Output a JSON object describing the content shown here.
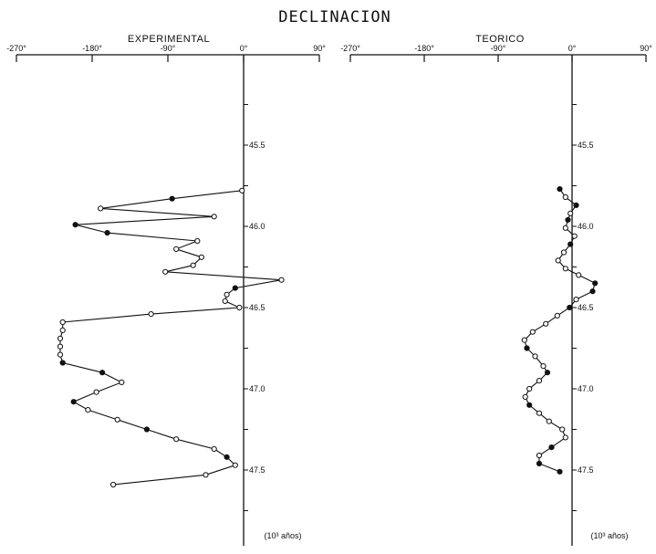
{
  "figure": {
    "title": "DECLINACION",
    "x_unit_label": "(10³ años)"
  },
  "chart_data": [
    {
      "type": "line",
      "title": "EXPERIMENTAL",
      "xlabel": "",
      "ylabel": "",
      "xlim": [
        -270,
        90
      ],
      "ylim": [
        45.0,
        48.0
      ],
      "x_ticks": [
        "-270°",
        "-180°",
        "-90°",
        "0°",
        "90°"
      ],
      "y_ticks": [
        "45.5",
        "46.0",
        "46.5",
        "47.0",
        "47.5"
      ],
      "y_unit": "(10³ años)",
      "y_inverted": true,
      "grid": false,
      "points": [
        {
          "x": -2,
          "y": 45.78,
          "filled": false
        },
        {
          "x": -85,
          "y": 45.83,
          "filled": true
        },
        {
          "x": -170,
          "y": 45.89,
          "filled": false
        },
        {
          "x": -35,
          "y": 45.94,
          "filled": false
        },
        {
          "x": -200,
          "y": 45.99,
          "filled": true
        },
        {
          "x": -162,
          "y": 46.04,
          "filled": true
        },
        {
          "x": -55,
          "y": 46.09,
          "filled": false
        },
        {
          "x": -80,
          "y": 46.14,
          "filled": false
        },
        {
          "x": -50,
          "y": 46.19,
          "filled": false
        },
        {
          "x": -60,
          "y": 46.24,
          "filled": false
        },
        {
          "x": -93,
          "y": 46.28,
          "filled": false
        },
        {
          "x": 45,
          "y": 46.33,
          "filled": false
        },
        {
          "x": -10,
          "y": 46.38,
          "filled": true
        },
        {
          "x": -20,
          "y": 46.42,
          "filled": false
        },
        {
          "x": -22,
          "y": 46.46,
          "filled": false
        },
        {
          "x": -5,
          "y": 46.5,
          "filled": false
        },
        {
          "x": -110,
          "y": 46.54,
          "filled": false
        },
        {
          "x": -215,
          "y": 46.59,
          "filled": false
        },
        {
          "x": -215,
          "y": 46.64,
          "filled": false
        },
        {
          "x": -218,
          "y": 46.69,
          "filled": false
        },
        {
          "x": -218,
          "y": 46.74,
          "filled": false
        },
        {
          "x": -218,
          "y": 46.79,
          "filled": false
        },
        {
          "x": -215,
          "y": 46.84,
          "filled": true
        },
        {
          "x": -168,
          "y": 46.9,
          "filled": true
        },
        {
          "x": -145,
          "y": 46.96,
          "filled": false
        },
        {
          "x": -175,
          "y": 47.02,
          "filled": false
        },
        {
          "x": -202,
          "y": 47.08,
          "filled": true
        },
        {
          "x": -185,
          "y": 47.13,
          "filled": false
        },
        {
          "x": -150,
          "y": 47.19,
          "filled": false
        },
        {
          "x": -115,
          "y": 47.25,
          "filled": true
        },
        {
          "x": -80,
          "y": 47.31,
          "filled": false
        },
        {
          "x": -35,
          "y": 47.37,
          "filled": false
        },
        {
          "x": -20,
          "y": 47.42,
          "filled": true
        },
        {
          "x": -10,
          "y": 47.47,
          "filled": false
        },
        {
          "x": -45,
          "y": 47.53,
          "filled": false
        },
        {
          "x": -155,
          "y": 47.59,
          "filled": false
        }
      ]
    },
    {
      "type": "line",
      "title": "TEORICO",
      "xlabel": "",
      "ylabel": "",
      "xlim": [
        -270,
        90
      ],
      "ylim": [
        45.0,
        48.0
      ],
      "x_ticks": [
        "-270°",
        "-180°",
        "-90°",
        "0°",
        "90°"
      ],
      "y_ticks": [
        "45.5",
        "46.0",
        "46.5",
        "47.0",
        "47.5"
      ],
      "y_unit": "(10³ años)",
      "y_inverted": true,
      "grid": false,
      "points": [
        {
          "x": -15,
          "y": 45.77,
          "filled": true
        },
        {
          "x": -8,
          "y": 45.82,
          "filled": false
        },
        {
          "x": 5,
          "y": 45.87,
          "filled": true
        },
        {
          "x": -2,
          "y": 45.92,
          "filled": false
        },
        {
          "x": -5,
          "y": 45.96,
          "filled": true
        },
        {
          "x": -8,
          "y": 46.01,
          "filled": false
        },
        {
          "x": 3,
          "y": 46.06,
          "filled": false
        },
        {
          "x": -2,
          "y": 46.11,
          "filled": true
        },
        {
          "x": -10,
          "y": 46.16,
          "filled": false
        },
        {
          "x": -17,
          "y": 46.21,
          "filled": false
        },
        {
          "x": -8,
          "y": 46.26,
          "filled": false
        },
        {
          "x": 8,
          "y": 46.3,
          "filled": false
        },
        {
          "x": 28,
          "y": 46.35,
          "filled": true
        },
        {
          "x": 25,
          "y": 46.4,
          "filled": true
        },
        {
          "x": 5,
          "y": 46.45,
          "filled": false
        },
        {
          "x": -3,
          "y": 46.5,
          "filled": true
        },
        {
          "x": -18,
          "y": 46.55,
          "filled": false
        },
        {
          "x": -32,
          "y": 46.6,
          "filled": false
        },
        {
          "x": -48,
          "y": 46.65,
          "filled": false
        },
        {
          "x": -58,
          "y": 46.7,
          "filled": false
        },
        {
          "x": -55,
          "y": 46.75,
          "filled": true
        },
        {
          "x": -45,
          "y": 46.8,
          "filled": false
        },
        {
          "x": -35,
          "y": 46.86,
          "filled": false
        },
        {
          "x": -30,
          "y": 46.9,
          "filled": true
        },
        {
          "x": -40,
          "y": 46.95,
          "filled": false
        },
        {
          "x": -52,
          "y": 47.0,
          "filled": false
        },
        {
          "x": -57,
          "y": 47.05,
          "filled": false
        },
        {
          "x": -52,
          "y": 47.1,
          "filled": true
        },
        {
          "x": -40,
          "y": 47.15,
          "filled": false
        },
        {
          "x": -28,
          "y": 47.2,
          "filled": false
        },
        {
          "x": -12,
          "y": 47.25,
          "filled": false
        },
        {
          "x": -8,
          "y": 47.3,
          "filled": false
        },
        {
          "x": -25,
          "y": 47.36,
          "filled": true
        },
        {
          "x": -40,
          "y": 47.41,
          "filled": false
        },
        {
          "x": -40,
          "y": 47.46,
          "filled": true
        },
        {
          "x": -15,
          "y": 47.51,
          "filled": true
        }
      ]
    }
  ]
}
